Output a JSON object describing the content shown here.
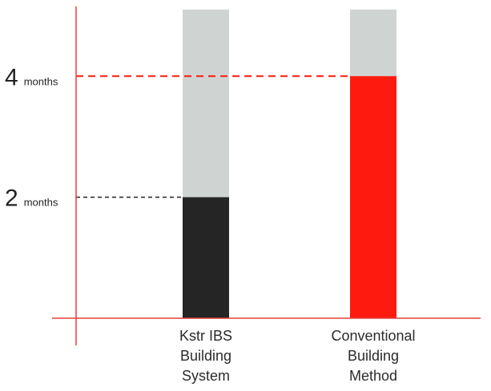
{
  "chart_data": {
    "type": "bar",
    "title": "",
    "xlabel": "",
    "ylabel": "",
    "categories": [
      [
        "Kstr IBS",
        "Building",
        "System"
      ],
      [
        "Conventional",
        "Building",
        "Method"
      ]
    ],
    "values": [
      2,
      4
    ],
    "ylim": [
      0,
      5.1
    ],
    "yticks": [
      {
        "value": 2,
        "number": "2",
        "unit": "months"
      },
      {
        "value": 4,
        "number": "4",
        "unit": "months"
      }
    ],
    "grid": false,
    "legend": "none",
    "colors": {
      "axis": "#e0403a",
      "track": "#cfd4d3",
      "bars": [
        "#252525",
        "#ff1a0f"
      ],
      "guides": [
        "#222222",
        "#ff1a0f"
      ]
    }
  }
}
